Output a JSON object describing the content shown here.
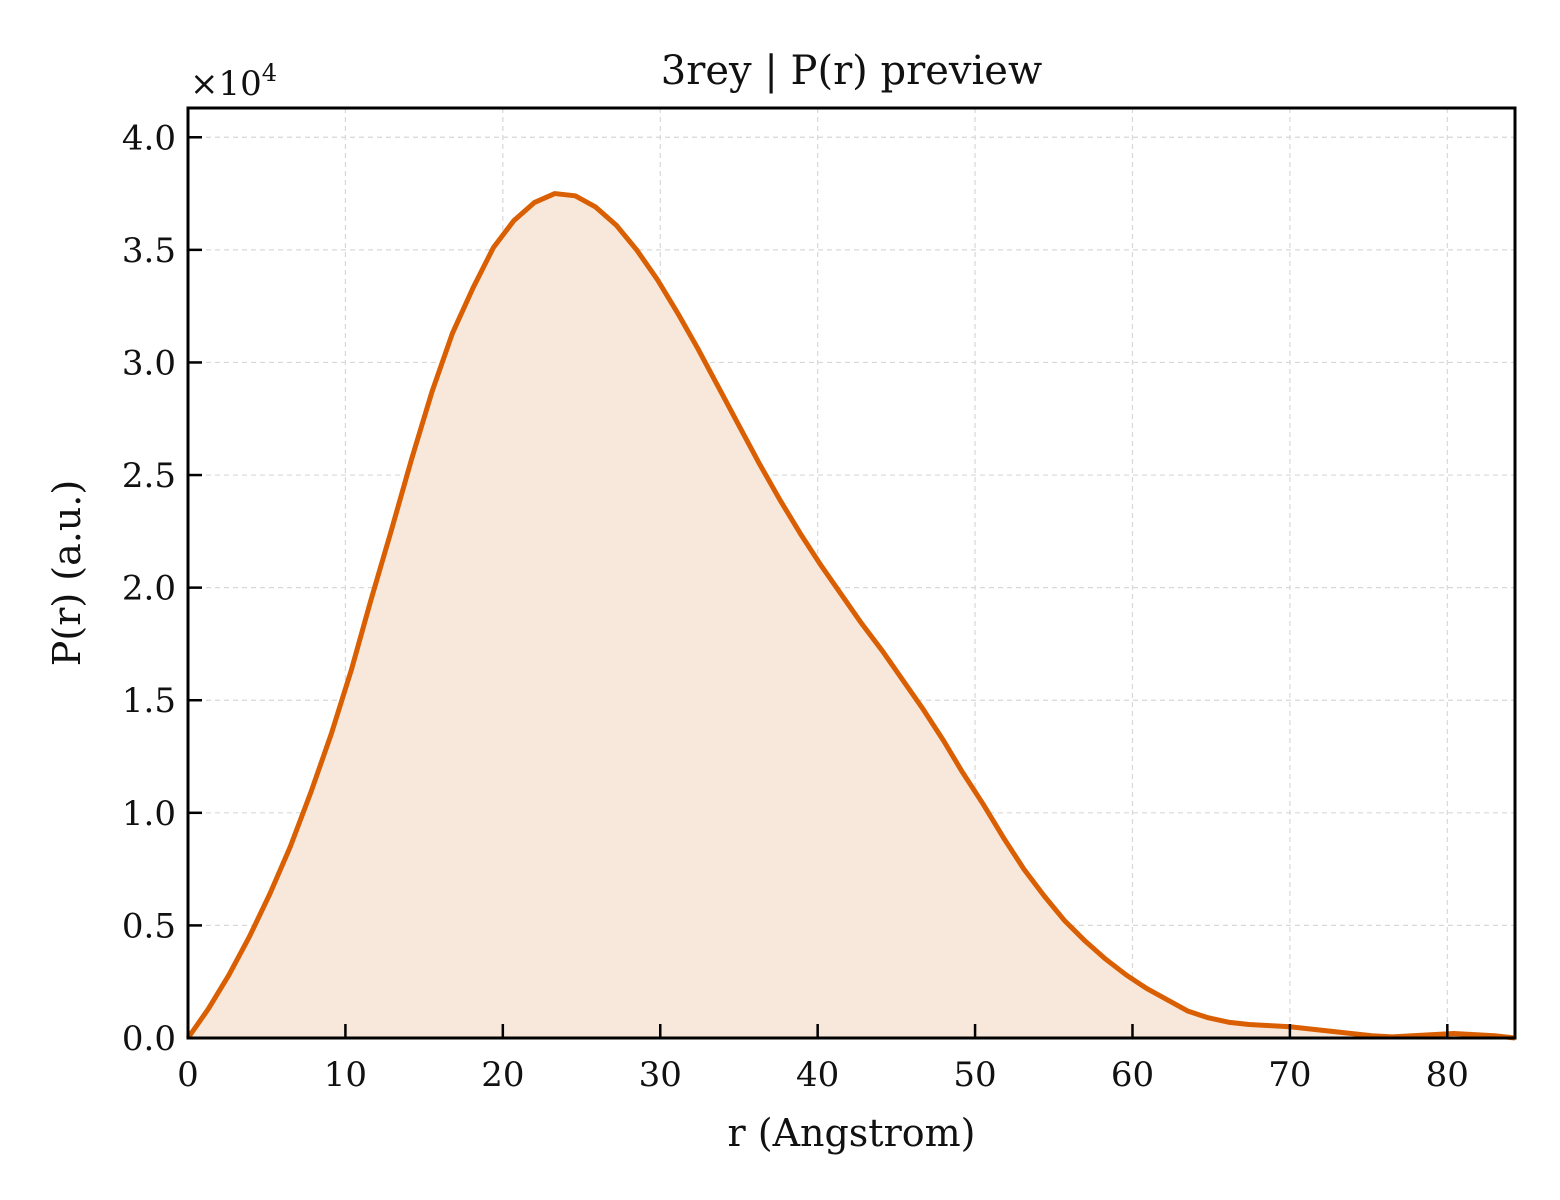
{
  "chart_data": {
    "type": "area",
    "title": "3rey | P(r) preview",
    "xlabel": "r (Angstrom)",
    "ylabel": "P(r) (a.u.)",
    "y_multiplier_text": "×10",
    "y_multiplier_exponent": "4",
    "xlim": [
      0,
      84.3
    ],
    "ylim": [
      0,
      4.13
    ],
    "x_ticks": [
      0,
      10,
      20,
      30,
      40,
      50,
      60,
      70,
      80
    ],
    "x_tick_labels": [
      "0",
      "10",
      "20",
      "30",
      "40",
      "50",
      "60",
      "70",
      "80"
    ],
    "y_ticks": [
      0,
      0.5,
      1.0,
      1.5,
      2.0,
      2.5,
      3.0,
      3.5,
      4.0
    ],
    "y_tick_labels": [
      "0.0",
      "0.5",
      "1.0",
      "1.5",
      "2.0",
      "2.5",
      "3.0",
      "3.5",
      "4.0"
    ],
    "grid": true,
    "legend": "none",
    "colors": {
      "line": "#d95f02",
      "fill": "#f8e8dc",
      "grid": "#d8d8d8",
      "axis": "#000000"
    },
    "series": [
      {
        "x": [
          0,
          1.3,
          2.6,
          3.9,
          5.2,
          6.5,
          7.8,
          9.1,
          10.4,
          11.6,
          12.9,
          14.2,
          15.5,
          16.8,
          18.1,
          19.4,
          20.7,
          22.0,
          23.3,
          24.6,
          25.9,
          27.2,
          28.5,
          29.8,
          31.1,
          32.4,
          33.7,
          35.0,
          36.3,
          37.6,
          38.9,
          40.2,
          41.5,
          42.8,
          44.1,
          45.4,
          46.7,
          48.0,
          49.2,
          50.5,
          51.8,
          53.1,
          54.4,
          55.7,
          57.0,
          58.3,
          59.6,
          60.9,
          62.2,
          63.5,
          64.8,
          66.1,
          67.4,
          68.7,
          70.0,
          71.3,
          72.6,
          73.9,
          75.2,
          76.5,
          77.8,
          79.1,
          80.4,
          81.7,
          83.0,
          84.3
        ],
        "values": [
          0,
          0.13,
          0.28,
          0.45,
          0.64,
          0.85,
          1.09,
          1.35,
          1.64,
          1.94,
          2.25,
          2.57,
          2.87,
          3.13,
          3.33,
          3.51,
          3.63,
          3.71,
          3.75,
          3.74,
          3.69,
          3.61,
          3.5,
          3.37,
          3.22,
          3.06,
          2.89,
          2.72,
          2.55,
          2.39,
          2.24,
          2.1,
          1.97,
          1.84,
          1.72,
          1.59,
          1.46,
          1.32,
          1.18,
          1.04,
          0.89,
          0.75,
          0.63,
          0.52,
          0.43,
          0.35,
          0.28,
          0.22,
          0.17,
          0.12,
          0.09,
          0.07,
          0.06,
          0.055,
          0.05,
          0.04,
          0.03,
          0.02,
          0.01,
          0.005,
          0.01,
          0.015,
          0.02,
          0.015,
          0.01,
          0.0
        ]
      }
    ]
  }
}
